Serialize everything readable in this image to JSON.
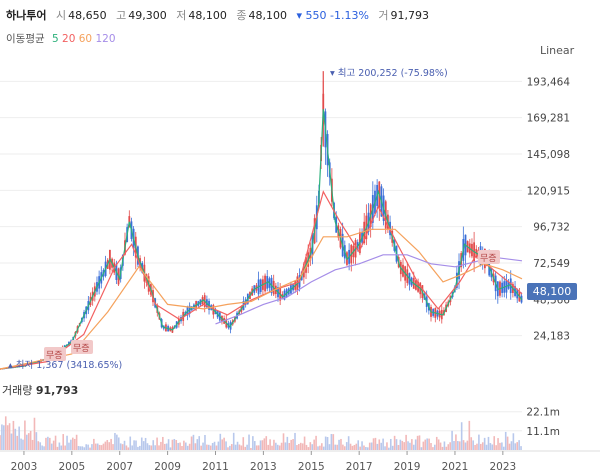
{
  "header": {
    "name": "하나투어",
    "open_label": "시",
    "open": "48,650",
    "high_label": "고",
    "high": "49,300",
    "low_label": "저",
    "low": "48,100",
    "close_label": "종",
    "close": "48,100",
    "change": "▾ 550 -1.13%",
    "volume_label": "거",
    "volume": "91,793"
  },
  "moving_average": {
    "title": "이동평균",
    "periods": [
      {
        "label": "5",
        "color": "#2bb07a"
      },
      {
        "label": "20",
        "color": "#f26060"
      },
      {
        "label": "60",
        "color": "#f5a25d"
      },
      {
        "label": "120",
        "color": "#a58de8"
      }
    ]
  },
  "scale_button": "Linear",
  "current_price_tag": "48,100",
  "annotations": {
    "max": "▾ 최고 200,252 (-75.98%)",
    "min": "▴ 최저 1,367 (3418.65%)",
    "badges": [
      "무증",
      "무증",
      "무증"
    ]
  },
  "volume_panel": {
    "label": "거래량",
    "value": "91,793"
  },
  "colors": {
    "up": "#e24b4b",
    "down": "#3a6fd8",
    "accent": "#4a73b8"
  },
  "chart_data": {
    "type": "line",
    "title": "",
    "y_ticks": [
      24183,
      48366,
      72549,
      96732,
      120915,
      145098,
      169281,
      193464
    ],
    "y_tick_labels": [
      "24,183",
      "48,366",
      "72,549",
      "96,732",
      "120,915",
      "145,098",
      "169,281",
      "193,464"
    ],
    "ylim": [
      0,
      205000
    ],
    "x_tick_labels": [
      "2003",
      "2005",
      "2007",
      "2009",
      "2011",
      "2013",
      "2015",
      "2017",
      "2019",
      "2021",
      "2023"
    ],
    "x_ticks": [
      2003,
      2005,
      2007,
      2009,
      2011,
      2013,
      2015,
      2017,
      2019,
      2021,
      2023
    ],
    "xlim": [
      2002.0,
      2023.8
    ],
    "series": [
      {
        "name": "5",
        "values": [
          [
            2002.0,
            2000
          ],
          [
            2003.0,
            4000
          ],
          [
            2004.0,
            9000
          ],
          [
            2005.0,
            20000
          ],
          [
            2006.0,
            55000
          ],
          [
            2006.6,
            75000
          ],
          [
            2007.0,
            62000
          ],
          [
            2007.4,
            100000
          ],
          [
            2007.8,
            75000
          ],
          [
            2008.3,
            55000
          ],
          [
            2008.8,
            30000
          ],
          [
            2009.2,
            28000
          ],
          [
            2009.8,
            40000
          ],
          [
            2010.5,
            48000
          ],
          [
            2011.0,
            40000
          ],
          [
            2011.6,
            30000
          ],
          [
            2012.0,
            40000
          ],
          [
            2012.6,
            55000
          ],
          [
            2013.2,
            60000
          ],
          [
            2013.8,
            50000
          ],
          [
            2014.5,
            60000
          ],
          [
            2015.0,
            80000
          ],
          [
            2015.3,
            110000
          ],
          [
            2015.5,
            175000
          ],
          [
            2015.7,
            145000
          ],
          [
            2016.0,
            100000
          ],
          [
            2016.5,
            75000
          ],
          [
            2017.0,
            85000
          ],
          [
            2017.4,
            100000
          ],
          [
            2017.8,
            120000
          ],
          [
            2018.3,
            95000
          ],
          [
            2018.7,
            70000
          ],
          [
            2019.2,
            60000
          ],
          [
            2019.6,
            55000
          ],
          [
            2020.0,
            40000
          ],
          [
            2020.5,
            38000
          ],
          [
            2021.0,
            55000
          ],
          [
            2021.4,
            85000
          ],
          [
            2021.8,
            80000
          ],
          [
            2022.3,
            75000
          ],
          [
            2022.8,
            55000
          ],
          [
            2023.3,
            58000
          ],
          [
            2023.8,
            48100
          ]
        ]
      },
      {
        "name": "20",
        "values": [
          [
            2002.0,
            2000
          ],
          [
            2004.0,
            7000
          ],
          [
            2005.5,
            25000
          ],
          [
            2006.8,
            70000
          ],
          [
            2007.5,
            85000
          ],
          [
            2008.5,
            45000
          ],
          [
            2009.5,
            35000
          ],
          [
            2010.5,
            45000
          ],
          [
            2011.5,
            38000
          ],
          [
            2012.5,
            48000
          ],
          [
            2013.5,
            55000
          ],
          [
            2014.5,
            60000
          ],
          [
            2015.5,
            120000
          ],
          [
            2016.2,
            100000
          ],
          [
            2017.0,
            80000
          ],
          [
            2017.8,
            110000
          ],
          [
            2018.6,
            85000
          ],
          [
            2019.5,
            58000
          ],
          [
            2020.3,
            42000
          ],
          [
            2021.2,
            60000
          ],
          [
            2021.9,
            78000
          ],
          [
            2022.6,
            68000
          ],
          [
            2023.4,
            58000
          ],
          [
            2023.8,
            52000
          ]
        ]
      },
      {
        "name": "60",
        "values": [
          [
            2002.0,
            2000
          ],
          [
            2005.0,
            12000
          ],
          [
            2006.5,
            40000
          ],
          [
            2007.8,
            70000
          ],
          [
            2009.0,
            45000
          ],
          [
            2010.5,
            42000
          ],
          [
            2011.5,
            45000
          ],
          [
            2012.5,
            47000
          ],
          [
            2013.5,
            55000
          ],
          [
            2014.5,
            62000
          ],
          [
            2015.5,
            90000
          ],
          [
            2016.5,
            90000
          ],
          [
            2017.5,
            95000
          ],
          [
            2018.5,
            95000
          ],
          [
            2019.5,
            80000
          ],
          [
            2020.5,
            60000
          ],
          [
            2021.3,
            65000
          ],
          [
            2022.2,
            72000
          ],
          [
            2023.0,
            68000
          ],
          [
            2023.8,
            62000
          ]
        ]
      },
      {
        "name": "120",
        "values": [
          [
            2011.0,
            32000
          ],
          [
            2012.0,
            38000
          ],
          [
            2013.0,
            45000
          ],
          [
            2014.0,
            50000
          ],
          [
            2015.0,
            60000
          ],
          [
            2016.0,
            68000
          ],
          [
            2017.0,
            72000
          ],
          [
            2018.0,
            78000
          ],
          [
            2019.0,
            78000
          ],
          [
            2020.0,
            72000
          ],
          [
            2021.0,
            70000
          ],
          [
            2022.0,
            74000
          ],
          [
            2022.8,
            76000
          ],
          [
            2023.8,
            74000
          ]
        ]
      }
    ],
    "volume": {
      "y_tick_labels": [
        "22.1m",
        "11.1m"
      ],
      "y_ticks": [
        22100000,
        11100000
      ]
    },
    "grid": true,
    "legend": "top-left"
  }
}
